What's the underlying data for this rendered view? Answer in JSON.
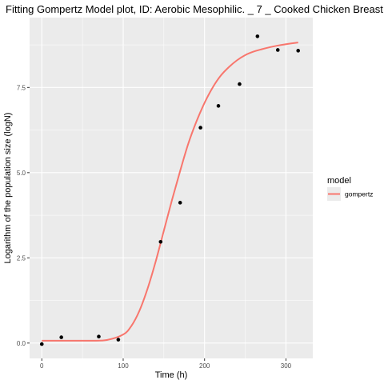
{
  "chart_data": {
    "type": "scatter",
    "title": "Fitting Gompertz Model plot, ID: Aerobic Mesophilic. _ 7 _ Cooked Chicken Breast",
    "xlabel": "Time (h)",
    "ylabel": "Logarithm of the population size (logN)",
    "xlim": [
      -15,
      333
    ],
    "ylim": [
      -0.45,
      9.55
    ],
    "xticks": [
      0,
      100,
      200,
      300
    ],
    "xtick_labels": [
      "0",
      "100",
      "200",
      "300"
    ],
    "yticks": [
      0,
      2.5,
      5,
      7.5
    ],
    "ytick_labels": [
      "0.0",
      "2.5",
      "5.0",
      "7.5"
    ],
    "grid": true,
    "legend": {
      "title": "model",
      "position": "right",
      "entries": [
        "gompertz"
      ]
    },
    "colors": {
      "panel": "#EBEBEB",
      "grid": "#FFFFFF",
      "gompertz": "#F8766D",
      "points": "#000000"
    },
    "points": {
      "x": [
        0,
        24,
        70,
        94,
        146,
        170,
        195,
        217,
        243,
        265,
        290,
        315
      ],
      "y": [
        -0.03,
        0.17,
        0.19,
        0.1,
        2.97,
        4.12,
        6.32,
        6.96,
        7.6,
        9.0,
        8.6,
        8.58
      ]
    },
    "series": [
      {
        "name": "gompertz",
        "x": [
          0,
          20,
          40,
          60,
          80,
          100,
          110,
          120,
          130,
          140,
          150,
          160,
          170,
          180,
          190,
          200,
          210,
          220,
          230,
          240,
          250,
          260,
          270,
          280,
          290,
          300,
          315
        ],
        "y": [
          0.07,
          0.07,
          0.07,
          0.07,
          0.09,
          0.25,
          0.5,
          0.95,
          1.6,
          2.4,
          3.3,
          4.2,
          5.05,
          5.85,
          6.5,
          7.05,
          7.5,
          7.85,
          8.1,
          8.3,
          8.45,
          8.55,
          8.62,
          8.68,
          8.73,
          8.77,
          8.82
        ]
      }
    ]
  }
}
